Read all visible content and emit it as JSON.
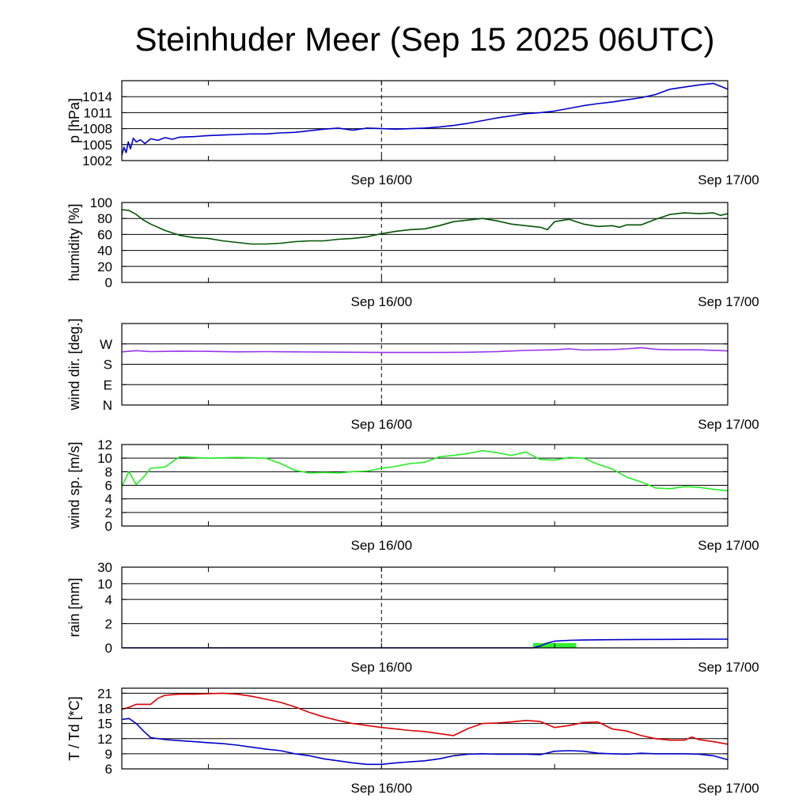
{
  "title": "Steinhuder Meer (Sep 15 2025 06UTC)",
  "x_axis": {
    "start": "Sep 15 06UTC",
    "end": "Sep 17 00UTC",
    "hours_span": 42,
    "labels": [
      {
        "text": "Sep 16/00",
        "hour": 18
      },
      {
        "text": "Sep 17/00",
        "hour": 42
      }
    ],
    "minor_ticks_hours": [
      6,
      18,
      30
    ],
    "dashed_line_hour": 18
  },
  "chart_data": [
    {
      "type": "line",
      "id": "pressure",
      "ylabel": "p [hPa]",
      "ylim": [
        1002,
        1017
      ],
      "yticks": [
        1002,
        1005,
        1008,
        1011,
        1014
      ],
      "grid": true,
      "series": [
        {
          "name": "pressure",
          "color": "#0000cc",
          "x": [
            0,
            0.15,
            0.3,
            0.45,
            0.6,
            0.8,
            1,
            1.3,
            1.6,
            2,
            2.5,
            3,
            3.5,
            4,
            5,
            6,
            7,
            8,
            9,
            10,
            11,
            12,
            13,
            14,
            15,
            16,
            17,
            18,
            19,
            20,
            21,
            22,
            23,
            24,
            25,
            26,
            27,
            28,
            29,
            30,
            31,
            32,
            33,
            34,
            35,
            36,
            37,
            38,
            39,
            40,
            41,
            42
          ],
          "y": [
            1003.0,
            1004.5,
            1003.5,
            1005.5,
            1004.2,
            1006.2,
            1005.5,
            1005.9,
            1005.2,
            1006.1,
            1005.8,
            1006.3,
            1006.0,
            1006.4,
            1006.5,
            1006.7,
            1006.8,
            1006.9,
            1007.0,
            1007.0,
            1007.2,
            1007.3,
            1007.6,
            1007.9,
            1008.1,
            1007.7,
            1008.1,
            1008.0,
            1007.9,
            1008.0,
            1008.1,
            1008.3,
            1008.6,
            1009.0,
            1009.5,
            1010.0,
            1010.4,
            1010.8,
            1011.0,
            1011.3,
            1011.8,
            1012.3,
            1012.7,
            1013.0,
            1013.4,
            1013.8,
            1014.4,
            1015.4,
            1015.8,
            1016.2,
            1016.5,
            1015.4
          ]
        }
      ]
    },
    {
      "type": "line",
      "id": "humidity",
      "ylabel": "humidity [%]",
      "ylim": [
        0,
        100
      ],
      "yticks": [
        0,
        20,
        40,
        60,
        80,
        100
      ],
      "grid": true,
      "series": [
        {
          "name": "relative humidity",
          "color": "#005500",
          "x": [
            0,
            0.5,
            1,
            1.5,
            2,
            3,
            4,
            5,
            6,
            7,
            8,
            9,
            10,
            11,
            12,
            13,
            14,
            15,
            16,
            17,
            18,
            19,
            20,
            21,
            22,
            23,
            24,
            25,
            26,
            27,
            28,
            29,
            29.5,
            30,
            31,
            32,
            33,
            34,
            34.5,
            35,
            36,
            37,
            38,
            39,
            40,
            41,
            41.5,
            42
          ],
          "y": [
            91,
            90,
            85,
            78,
            73,
            65,
            59,
            56,
            55,
            52,
            50,
            48,
            48,
            49,
            51,
            52,
            52,
            54,
            55,
            57,
            61,
            64,
            66,
            67,
            71,
            76,
            78,
            80,
            77,
            73,
            71,
            69,
            66,
            76,
            79,
            73,
            70,
            71,
            69,
            72,
            72,
            79,
            85,
            87,
            86,
            87,
            84,
            86
          ]
        }
      ]
    },
    {
      "type": "line",
      "id": "wind_direction",
      "ylabel": "wind dir. [deg.]",
      "ylim": [
        0,
        360
      ],
      "yticks": [
        0,
        90,
        180,
        270
      ],
      "yticklabels": [
        "N",
        "E",
        "S",
        "W"
      ],
      "grid": true,
      "series": [
        {
          "name": "wind direction",
          "color": "#9933ee",
          "x": [
            0,
            1,
            2,
            4,
            6,
            8,
            10,
            12,
            14,
            16,
            18,
            20,
            22,
            24,
            26,
            28,
            30,
            31,
            32,
            34,
            35,
            36,
            37,
            38,
            40,
            42
          ],
          "y": [
            235,
            240,
            236,
            238,
            237,
            235,
            236,
            235,
            234,
            233,
            232,
            232,
            232,
            233,
            236,
            241,
            244,
            248,
            243,
            245,
            248,
            253,
            246,
            244,
            244,
            239
          ]
        }
      ]
    },
    {
      "type": "line",
      "id": "wind_speed",
      "ylabel": "wind sp. [m/s]",
      "ylim": [
        0,
        12
      ],
      "yticks": [
        0,
        2,
        4,
        6,
        8,
        10,
        12
      ],
      "grid": true,
      "series": [
        {
          "name": "wind speed",
          "color": "#22ee22",
          "x": [
            0,
            0.5,
            1,
            1.5,
            2,
            3,
            4,
            6,
            8,
            10,
            11,
            12,
            13,
            14,
            15,
            16,
            17,
            18,
            19,
            20,
            21,
            22,
            23,
            24,
            25,
            26,
            27,
            28,
            29,
            30,
            31,
            32,
            33,
            34,
            35,
            36,
            37,
            38,
            39,
            40,
            41,
            42
          ],
          "y": [
            5.8,
            8.0,
            6.1,
            7.2,
            8.5,
            8.7,
            10.2,
            10.0,
            10.1,
            10.0,
            9.2,
            8.2,
            7.8,
            7.9,
            7.8,
            8.0,
            8.1,
            8.5,
            8.8,
            9.2,
            9.4,
            10.2,
            10.4,
            10.7,
            11.1,
            10.8,
            10.4,
            10.9,
            9.8,
            9.7,
            10.1,
            10.0,
            9.1,
            8.4,
            7.2,
            6.5,
            5.6,
            5.5,
            5.8,
            5.7,
            5.4,
            5.2
          ]
        }
      ]
    },
    {
      "type": "bar+line",
      "id": "rain",
      "ylabel": "rain [mm]",
      "ylim": [
        0,
        30
      ],
      "yticks": [
        0,
        2,
        4,
        10,
        30
      ],
      "ytick_scale": "nonlinear",
      "grid": true,
      "bars": [
        {
          "x_start": 28.5,
          "x_end": 31.5,
          "value": 0.4,
          "color": "#33ee33"
        }
      ],
      "series": [
        {
          "name": "accumulated rain",
          "color": "#0000cc",
          "x": [
            0,
            28.5,
            29,
            29.5,
            30,
            31,
            32,
            34,
            36,
            38,
            40,
            42
          ],
          "y": [
            0,
            0,
            0.15,
            0.4,
            0.55,
            0.62,
            0.65,
            0.67,
            0.69,
            0.7,
            0.71,
            0.72
          ]
        }
      ]
    },
    {
      "type": "line",
      "id": "temperature",
      "ylabel": "T / Td [*C]",
      "ylim": [
        6,
        22
      ],
      "yticks": [
        6,
        9,
        12,
        15,
        18,
        21
      ],
      "grid": true,
      "series": [
        {
          "name": "temperature",
          "color": "#dd0000",
          "x": [
            0,
            0.5,
            1,
            2,
            2.5,
            3,
            4,
            5,
            6,
            7,
            8,
            9,
            10,
            11,
            12,
            13,
            14,
            15,
            16,
            17,
            18,
            19,
            20,
            21,
            22,
            23,
            24,
            25,
            26,
            27,
            28,
            29,
            29.5,
            30,
            31,
            32,
            33,
            34,
            35,
            36,
            37,
            38,
            39,
            39.5,
            40,
            41,
            42
          ],
          "y": [
            17.8,
            18.2,
            18.8,
            18.8,
            20.0,
            20.6,
            20.8,
            20.8,
            20.9,
            21.0,
            20.8,
            20.4,
            19.8,
            19.2,
            18.3,
            17.2,
            16.3,
            15.6,
            15.0,
            14.6,
            14.2,
            13.9,
            13.6,
            13.4,
            13.0,
            12.6,
            14.0,
            15.0,
            15.1,
            15.3,
            15.6,
            15.4,
            14.8,
            14.2,
            14.6,
            15.2,
            15.3,
            13.9,
            13.5,
            12.6,
            12.0,
            11.7,
            11.7,
            12.3,
            11.8,
            11.4,
            10.9
          ]
        },
        {
          "name": "dew point",
          "color": "#0000cc",
          "x": [
            0,
            0.5,
            1,
            1.5,
            2,
            3,
            4,
            5,
            6,
            7,
            8,
            9,
            10,
            11,
            12,
            13,
            14,
            15,
            16,
            17,
            18,
            19,
            20,
            21,
            22,
            23,
            24,
            25,
            26,
            27,
            28,
            29,
            30,
            31,
            32,
            33,
            34,
            35,
            36,
            37,
            38,
            39,
            40,
            41,
            42
          ],
          "y": [
            15.8,
            16.0,
            15.0,
            13.5,
            12.2,
            11.8,
            11.6,
            11.4,
            11.2,
            11.0,
            10.7,
            10.3,
            9.9,
            9.6,
            9.0,
            8.6,
            8.0,
            7.6,
            7.2,
            6.9,
            6.9,
            7.2,
            7.4,
            7.6,
            8.0,
            8.6,
            8.9,
            9.0,
            8.9,
            8.9,
            8.9,
            8.8,
            9.5,
            9.6,
            9.5,
            9.1,
            9.0,
            8.9,
            9.1,
            9.0,
            9.0,
            9.0,
            8.9,
            8.6,
            7.8
          ]
        }
      ]
    }
  ]
}
